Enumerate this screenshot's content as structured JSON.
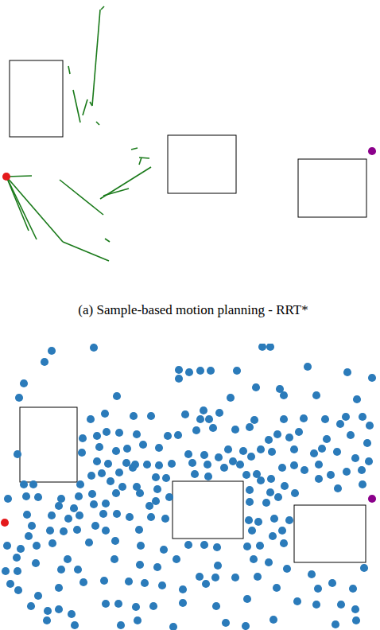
{
  "chart_data": [
    {
      "type": "tree",
      "title": "(a) Sample-based motion planning - RRT*",
      "tick_labels": false,
      "xlim": [
        0,
        478
      ],
      "ylim": [
        0,
        345
      ],
      "obstacles": [
        [
          12,
          76,
          79,
          172
        ],
        [
          211,
          170,
          297,
          243
        ],
        [
          375,
          200,
          461,
          273
        ]
      ],
      "edge_color": "#1a7a1a",
      "edges": [
        [
          8,
          222,
          40,
          221
        ],
        [
          8,
          222,
          36,
          290
        ],
        [
          8,
          222,
          46,
          301
        ],
        [
          8,
          222,
          79,
          304
        ],
        [
          79,
          304,
          137,
          328
        ],
        [
          132,
          300,
          138,
          304
        ],
        [
          75,
          226,
          130,
          270
        ],
        [
          126,
          250,
          190,
          210
        ],
        [
          130,
          246,
          162,
          237
        ],
        [
          165,
          188,
          173,
          186
        ],
        [
          175,
          198,
          188,
          199
        ],
        [
          178,
          198,
          175,
          207
        ],
        [
          131,
          8,
          127,
          12
        ],
        [
          126,
          12,
          116,
          133
        ],
        [
          116,
          133,
          113,
          128
        ],
        [
          86,
          83,
          88,
          93
        ],
        [
          92,
          113,
          101,
          154
        ],
        [
          110,
          125,
          104,
          145
        ],
        [
          121,
          153,
          125,
          157
        ]
      ],
      "series": [
        {
          "color": "#e41a1c",
          "marker": "circle",
          "x": [
            8
          ],
          "values": [
            222
          ]
        },
        {
          "color": "#8b008b",
          "marker": "circle",
          "x": [
            468
          ],
          "values": [
            190
          ]
        }
      ]
    },
    {
      "type": "scatter",
      "tick_labels": false,
      "xlim": [
        0,
        478
      ],
      "ylim": [
        0,
        360
      ],
      "obstacles": [
        [
          25,
          80,
          97,
          174
        ],
        [
          217,
          173,
          306,
          245
        ],
        [
          370,
          203,
          460,
          275
        ]
      ],
      "series": [
        {
          "color": "#2b7bba",
          "marker": "circle",
          "x": [
            65,
            118,
            330,
            340,
            56,
            225,
            238,
            252,
            265,
            298,
            387,
            30,
            147,
            225,
            322,
            352,
            357,
            437,
            468,
            290,
            398,
            449,
            24,
            114,
            132,
            168,
            190,
            233,
            256,
            263,
            252,
            276,
            296,
            314,
            320,
            357,
            382,
            409,
            435,
            456,
            465,
            428,
            104,
            122,
            134,
            150,
            172,
            211,
            224,
            247,
            268,
            306,
            328,
            338,
            349,
            364,
            376,
            411,
            441,
            462,
            22,
            103,
            125,
            146,
            160,
            180,
            200,
            237,
            257,
            275,
            287,
            302,
            316,
            342,
            370,
            395,
            405,
            424,
            447,
            464,
            122,
            136,
            159,
            167,
            185,
            200,
            216,
            242,
            261,
            282,
            293,
            323,
            355,
            370,
            383,
            401,
            416,
            436,
            455,
            456,
            115,
            128,
            150,
            170,
            196,
            209,
            245,
            262,
            310,
            328,
            341,
            358,
            401,
            425,
            30,
            42,
            101,
            139,
            154,
            172,
            198,
            314,
            340,
            371,
            10,
            33,
            48,
            77,
            99,
            116,
            146,
            176,
            196,
            213,
            314,
            335,
            350,
            74,
            93,
            118,
            133,
            188,
            34,
            65,
            86,
            100,
            130,
            147,
            163,
            190,
            208,
            40,
            120,
            175,
            313,
            325,
            345,
            364,
            36,
            63,
            80,
            97,
            133,
            317,
            343,
            355,
            9,
            26,
            46,
            66,
            112,
            145,
            177,
            206,
            237,
            257,
            273,
            311,
            327,
            357,
            21,
            45,
            77,
            85,
            98,
            144,
            176,
            198,
            222,
            274,
            319,
            338,
            361,
            458,
            7,
            22,
            13,
            23,
            48,
            74,
            105,
            131,
            162,
            182,
            204,
            230,
            251,
            259,
            271,
            296,
            324,
            348,
            392,
            400,
            418,
            444,
            39,
            60,
            74,
            90,
            133,
            149,
            171,
            193,
            230,
            272,
            311,
            344,
            374,
            398,
            429,
            447,
            59,
            94,
            152,
            284,
            309,
            422,
            448,
            173,
            218
          ],
          "values": [
            9,
            5,
            4,
            4,
            23,
            33,
            36,
            34,
            34,
            34,
            29,
            50,
            66,
            44,
            55,
            57,
            65,
            36,
            43,
            68,
            65,
            70,
            68,
            95,
            88,
            91,
            91,
            89,
            84,
            95,
            95,
            87,
            108,
            105,
            96,
            95,
            94,
            95,
            92,
            92,
            103,
            101,
            119,
            116,
            111,
            112,
            114,
            116,
            115,
            109,
            106,
            135,
            133,
            121,
            114,
            118,
            111,
            120,
            115,
            125,
            139,
            137,
            130,
            135,
            132,
            127,
            131,
            139,
            140,
            143,
            133,
            152,
            142,
            136,
            133,
            138,
            132,
            136,
            144,
            148,
            148,
            151,
            150,
            156,
            152,
            153,
            151,
            150,
            152,
            156,
            148,
            164,
            156,
            153,
            159,
            152,
            165,
            161,
            159,
            177,
            166,
            163,
            162,
            152,
            168,
            169,
            164,
            167,
            165,
            172,
            170,
            179,
            170,
            182,
            177,
            177,
            177,
            173,
            180,
            180,
            183,
            184,
            187,
            188,
            195,
            192,
            193,
            195,
            192,
            189,
            188,
            188,
            198,
            193,
            199,
            200,
            193,
            204,
            207,
            202,
            201,
            204,
            215,
            216,
            220,
            216,
            214,
            214,
            218,
            218,
            220,
            229,
            229,
            234,
            222,
            224,
            220,
            222,
            242,
            235,
            236,
            234,
            235,
            235,
            242,
            235,
            254,
            258,
            254,
            251,
            250,
            248,
            254,
            259,
            253,
            253,
            256,
            255,
            254,
            251,
            269,
            276,
            284,
            271,
            284,
            271,
            278,
            281,
            271,
            279,
            271,
            275,
            283,
            282,
            286,
            286,
            302,
            310,
            317,
            307,
            300,
            298,
            299,
            301,
            304,
            309,
            293,
            302,
            294,
            294,
            293,
            307,
            290,
            308,
            301,
            308,
            330,
            336,
            334,
            340,
            327,
            327,
            331,
            330,
            326,
            330,
            321,
            347,
            324,
            328,
            328,
            334,
            348,
            354,
            354,
            351,
            355,
            353,
            348,
            348,
            356
          ]
        },
        {
          "color": "#e41a1c",
          "marker": "circle",
          "x": [
            6
          ],
          "values": [
            225
          ]
        },
        {
          "color": "#8b008b",
          "marker": "circle",
          "x": [
            468
          ],
          "values": [
            195
          ]
        }
      ]
    }
  ]
}
